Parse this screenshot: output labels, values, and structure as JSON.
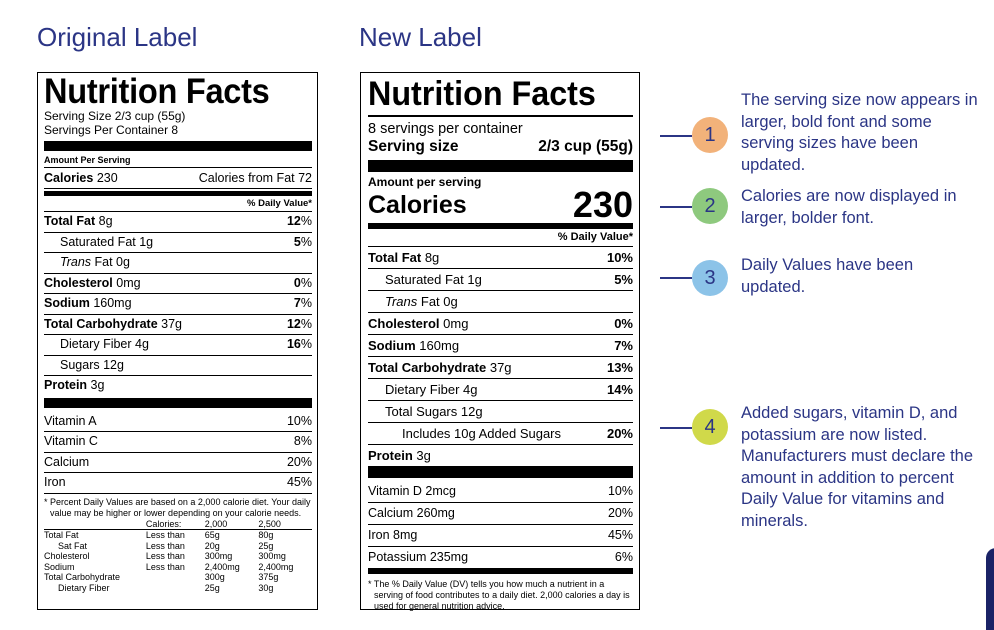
{
  "headings": {
    "original": "Original Label",
    "new": "New Label"
  },
  "original": {
    "title": "Nutrition Facts",
    "serving_size": "Serving Size 2/3 cup (55g)",
    "servings_per_container": "Servings Per Container 8",
    "amount_per_serving": "Amount Per Serving",
    "calories_label": "Calories",
    "calories_value": "230",
    "calories_from_fat": "Calories from Fat 72",
    "dv_header": "% Daily Value*",
    "nutrients": [
      {
        "name": "Total Fat",
        "amount": "8g",
        "dv": "12",
        "pct": "%"
      },
      {
        "name": "Saturated Fat",
        "amount": "1g",
        "dv": "5",
        "pct": "%"
      },
      {
        "name": "Trans",
        "amount": "Fat 0g",
        "dv": "",
        "pct": ""
      },
      {
        "name": "Cholesterol",
        "amount": "0mg",
        "dv": "0",
        "pct": "%"
      },
      {
        "name": "Sodium",
        "amount": "160mg",
        "dv": "7",
        "pct": "%"
      },
      {
        "name": "Total Carbohydrate",
        "amount": "37g",
        "dv": "12",
        "pct": "%"
      },
      {
        "name": "Dietary Fiber",
        "amount": "4g",
        "dv": "16",
        "pct": "%"
      },
      {
        "name": "Sugars",
        "amount": "12g",
        "dv": "",
        "pct": ""
      },
      {
        "name": "Protein",
        "amount": "3g",
        "dv": "",
        "pct": ""
      }
    ],
    "vitamins": [
      {
        "name": "Vitamin A",
        "dv": "10%"
      },
      {
        "name": "Vitamin C",
        "dv": "8%"
      },
      {
        "name": "Calcium",
        "dv": "20%"
      },
      {
        "name": "Iron",
        "dv": "45%"
      }
    ],
    "footnote": "* Percent Daily Values are based on a 2,000 calorie diet. Your daily value may be higher or lower depending on your calorie needs.",
    "table": {
      "header": [
        "Calories:",
        "2,000",
        "2,500"
      ],
      "rows": [
        {
          "name": "Total Fat",
          "limit": "Less than",
          "v1": "65g",
          "v2": "80g"
        },
        {
          "name": "Sat Fat",
          "limit": "Less than",
          "v1": "20g",
          "v2": "25g"
        },
        {
          "name": "Cholesterol",
          "limit": "Less than",
          "v1": "300mg",
          "v2": "300mg"
        },
        {
          "name": "Sodium",
          "limit": "Less than",
          "v1": "2,400mg",
          "v2": "2,400mg"
        },
        {
          "name": "Total Carbohydrate",
          "limit": "",
          "v1": "300g",
          "v2": "375g"
        },
        {
          "name": "Dietary Fiber",
          "limit": "",
          "v1": "25g",
          "v2": "30g"
        }
      ]
    }
  },
  "new": {
    "title": "Nutrition Facts",
    "servings_per_container": "8 servings per container",
    "serving_size_label": "Serving size",
    "serving_size_value": "2/3 cup (55g)",
    "amount_per_serving": "Amount per serving",
    "calories_label": "Calories",
    "calories_value": "230",
    "dv_header": "% Daily Value*",
    "nutrients": [
      {
        "name": "Total Fat",
        "amount": "8g",
        "dv": "10%"
      },
      {
        "name": "Saturated Fat",
        "amount": "1g",
        "dv": "5%"
      },
      {
        "name": "Trans",
        "amount": "Fat 0g",
        "dv": ""
      },
      {
        "name": "Cholesterol",
        "amount": "0mg",
        "dv": "0%"
      },
      {
        "name": "Sodium",
        "amount": "160mg",
        "dv": "7%"
      },
      {
        "name": "Total Carbohydrate",
        "amount": "37g",
        "dv": "13%"
      },
      {
        "name": "Dietary Fiber",
        "amount": "4g",
        "dv": "14%"
      },
      {
        "name": "Total Sugars",
        "amount": "12g",
        "dv": ""
      },
      {
        "name": "Includes 10g Added Sugars",
        "amount": "",
        "dv": "20%"
      },
      {
        "name": "Protein",
        "amount": "3g",
        "dv": ""
      }
    ],
    "vitamins": [
      {
        "name": "Vitamin D 2mcg",
        "dv": "10%"
      },
      {
        "name": "Calcium 260mg",
        "dv": "20%"
      },
      {
        "name": "Iron 8mg",
        "dv": "45%"
      },
      {
        "name": "Potassium 235mg",
        "dv": "6%"
      }
    ],
    "footnote": "* The % Daily Value (DV) tells you how much a nutrient in a serving of food contributes to a daily diet. 2,000 calories a day is used for general nutrition advice."
  },
  "annotations": [
    {
      "number": "1",
      "text": "The serving size now appears in larger, bold font and some serving sizes have been updated.",
      "color": "#f2b27a"
    },
    {
      "number": "2",
      "text": "Calories are now displayed in larger, bolder font.",
      "color": "#8ec97e"
    },
    {
      "number": "3",
      "text": "Daily Values have been updated.",
      "color": "#8cc3e8"
    },
    {
      "number": "4",
      "text": "Added sugars, vitamin D, and potassium are now listed. Manufacturers must declare the amount in addition to percent Daily Value for vitamins and minerals.",
      "color": "#d0d94a"
    }
  ]
}
